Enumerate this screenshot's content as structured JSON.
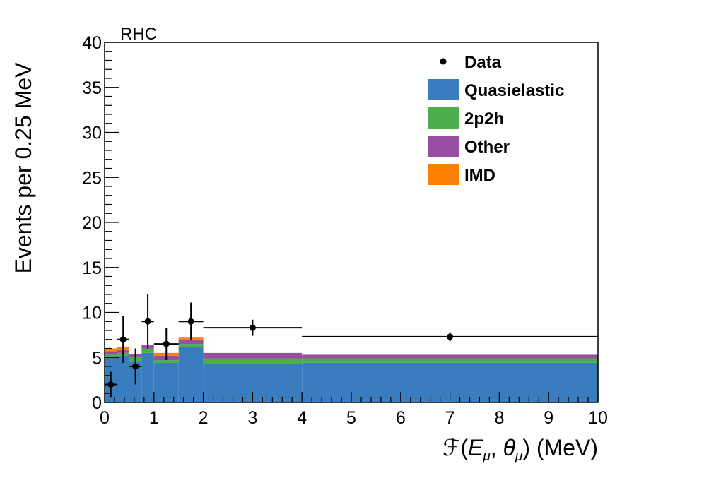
{
  "chart_data": {
    "type": "bar",
    "stacked": true,
    "annotation": "RHC",
    "xlabel_prefix": "ℱ(",
    "xlabel_vars": [
      "E",
      "μ",
      "θ",
      "μ"
    ],
    "xlabel_units": "(MeV)",
    "ylabel": "Events per 0.25 MeV",
    "xlim": [
      0,
      10
    ],
    "ylim": [
      0,
      40
    ],
    "x_ticks": [
      "0",
      "1",
      "2",
      "3",
      "4",
      "5",
      "6",
      "7",
      "8",
      "9",
      "10"
    ],
    "y_ticks": [
      "0",
      "5",
      "10",
      "15",
      "20",
      "25",
      "30",
      "35",
      "40"
    ],
    "bin_edges": [
      0,
      0.25,
      0.5,
      0.75,
      1.0,
      1.5,
      2.0,
      4.0,
      10.0
    ],
    "series": [
      {
        "name": "Quasielastic",
        "color": "#3a7dbf",
        "values": [
          5.1,
          5.2,
          4.5,
          5.5,
          4.4,
          6.2,
          4.3,
          4.4
        ]
      },
      {
        "name": "2p2h",
        "color": "#4cae4a",
        "values": [
          0.3,
          0.3,
          0.6,
          0.5,
          0.3,
          0.3,
          0.6,
          0.5
        ]
      },
      {
        "name": "Other",
        "color": "#984ea3",
        "values": [
          0.3,
          0.3,
          0.3,
          0.4,
          0.5,
          0.5,
          0.6,
          0.4
        ]
      },
      {
        "name": "IMD",
        "color": "#ff7f00",
        "values": [
          0.3,
          0.4,
          0.0,
          0.0,
          0.3,
          0.2,
          0.0,
          0.0
        ]
      }
    ],
    "data_points": {
      "name": "Data",
      "color": "#000000",
      "x": [
        0.125,
        0.375,
        0.625,
        0.875,
        1.25,
        1.75,
        3.0,
        7.0
      ],
      "xerr": [
        0.125,
        0.125,
        0.125,
        0.125,
        0.25,
        0.25,
        1.0,
        3.0
      ],
      "y": [
        2.0,
        7.0,
        4.0,
        9.0,
        6.5,
        9.0,
        8.3,
        7.3
      ],
      "yerr": [
        1.4,
        2.6,
        2.0,
        3.0,
        1.8,
        2.1,
        0.9,
        0.5
      ]
    },
    "legend": [
      {
        "label": "Data",
        "kind": "marker",
        "color": "#000000"
      },
      {
        "label": "Quasielastic",
        "kind": "box",
        "color": "#3a7dbf"
      },
      {
        "label": "2p2h",
        "kind": "box",
        "color": "#4cae4a"
      },
      {
        "label": "Other",
        "kind": "box",
        "color": "#984ea3"
      },
      {
        "label": "IMD",
        "kind": "box",
        "color": "#ff7f00"
      }
    ],
    "legend_position": "top-right"
  }
}
